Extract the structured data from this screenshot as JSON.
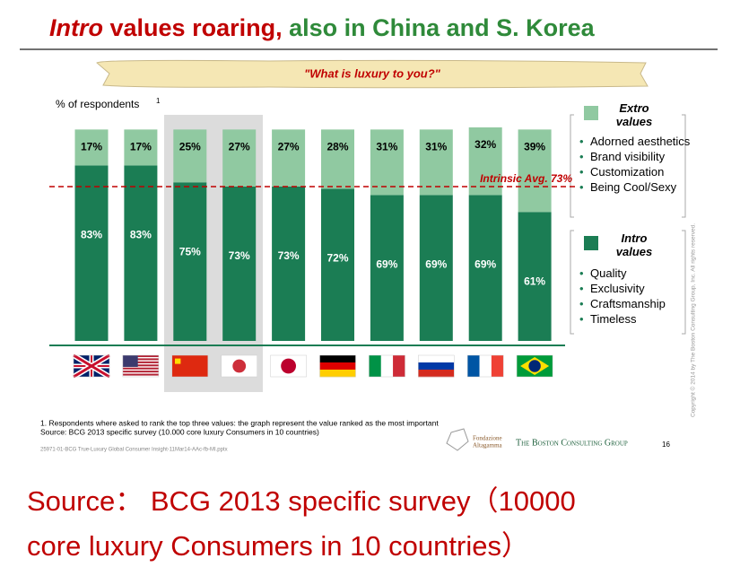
{
  "slide": {
    "title": [
      "Intro",
      "values roaring,",
      "also in China and S. Korea"
    ],
    "banner": "\"What is luxury to you?\"",
    "y_label": "% of respondents",
    "y_label_note": "1",
    "extro_items": [
      "Adorned aesthetics",
      "Brand visibility",
      "Customization",
      "Being Cool/Sexy"
    ],
    "intro_items": [
      "Quality",
      "Exclusivity",
      "Craftsmanship",
      "Timeless"
    ],
    "footnotes": [
      "1. Respondents where asked  to rank the top three values: the graph represent the value ranked as the most important",
      "Source: BCG 2013 specific survey (10.000 core luxury Consumers in 10 countries)"
    ],
    "file_name": "25971-01-BCG True-Luxury Global Consumer Insight-11Mar14-AAc-fb-MI.pptx",
    "logo_1": [
      "Fondazione",
      "Altagamma"
    ],
    "logo_2": "The Boston Consulting Group",
    "page_number": "16",
    "copyright": "Copyright © 2014 by The Boston Consulting Group, Inc. All rights reserved.",
    "caption": [
      "Source： BCG 2013 specific survey（10000",
      "core luxury Consumers in 10 countries）"
    ]
  },
  "chart_data": {
    "type": "stacked_bar",
    "categories": [
      null,
      null,
      null,
      null,
      null,
      null,
      null,
      null,
      null,
      null
    ],
    "series": [
      {
        "name": "Intro values",
        "color": "#1b7d54",
        "values": [
          83,
          83,
          75,
          73,
          73,
          72,
          69,
          69,
          69,
          61
        ],
        "value_labels": [
          "83%",
          "83%",
          "75%",
          "73%",
          "73%",
          "72%",
          "69%",
          "69%",
          "69%",
          "61%"
        ]
      },
      {
        "name": "Extro values",
        "color": "#90c9a1",
        "values": [
          17,
          17,
          25,
          27,
          27,
          28,
          31,
          31,
          32,
          39
        ],
        "value_labels": [
          "17%",
          "17%",
          "25%",
          "27%",
          "27%",
          "28%",
          "31%",
          "31%",
          "32%",
          "39%"
        ]
      }
    ],
    "average": {
      "value": 73,
      "label": "Intrinsic Avg. 73%"
    },
    "average_color": "#c00000"
  }
}
